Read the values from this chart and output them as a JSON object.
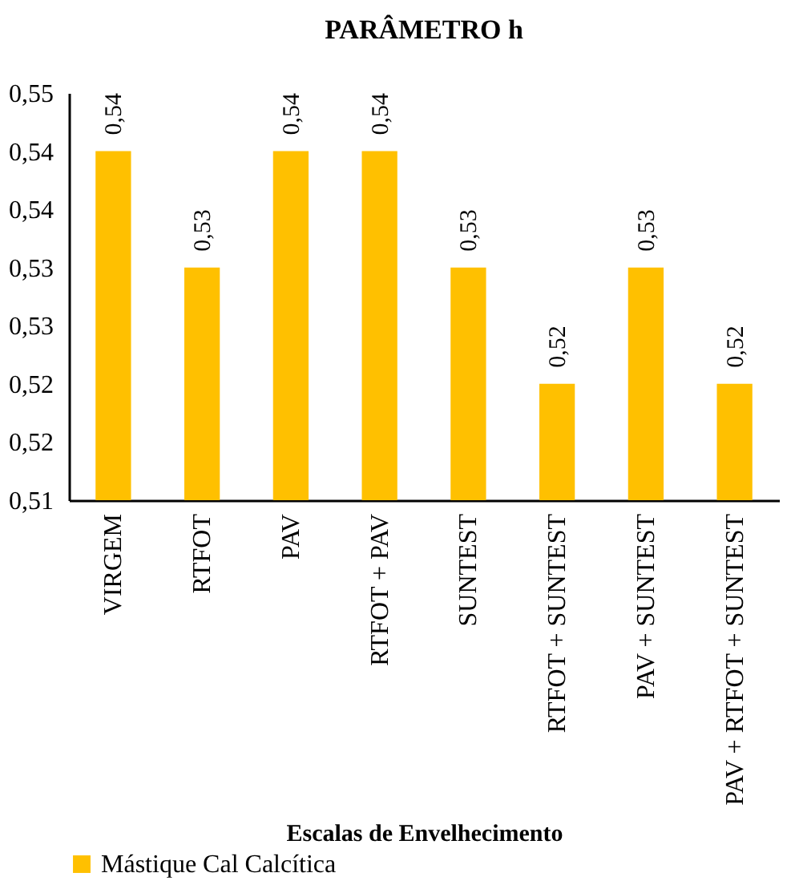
{
  "chart_data": {
    "type": "bar",
    "title": "PARÂMETRO h",
    "xlabel": "Escalas de Envelhecimento",
    "categories": [
      "VIRGEM",
      "RTFOT",
      "PAV",
      "RTFOT + PAV",
      "SUNTEST",
      "RTFOT + SUNTEST",
      "PAV + SUNTEST",
      "PAV + RTFOT + SUNTEST"
    ],
    "series": [
      {
        "name": "Mástique Cal Calcítica",
        "color": "#ffc000",
        "values": [
          0.54,
          0.53,
          0.54,
          0.54,
          0.53,
          0.52,
          0.53,
          0.52
        ],
        "value_labels": [
          "0,54",
          "0,53",
          "0,54",
          "0,54",
          "0,53",
          "0,52",
          "0,53",
          "0,52"
        ]
      }
    ],
    "ylim": [
      0.51,
      0.545
    ],
    "yticks": [
      {
        "value": 0.51,
        "label": "0,51"
      },
      {
        "value": 0.515,
        "label": "0,52"
      },
      {
        "value": 0.52,
        "label": "0,52"
      },
      {
        "value": 0.525,
        "label": "0,53"
      },
      {
        "value": 0.53,
        "label": "0,53"
      },
      {
        "value": 0.535,
        "label": "0,54"
      },
      {
        "value": 0.54,
        "label": "0,54"
      },
      {
        "value": 0.545,
        "label": "0,55"
      }
    ],
    "grid": false,
    "legend": "bottom"
  }
}
